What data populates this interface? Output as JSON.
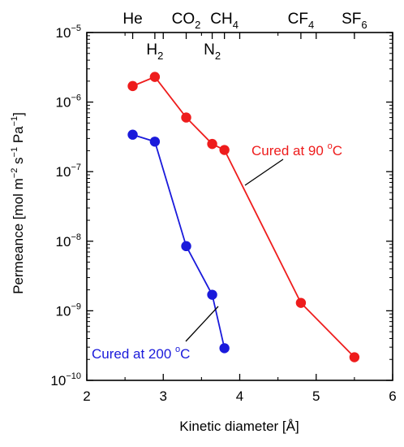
{
  "chart_data": {
    "type": "line",
    "xlabel": "Kinetic diameter [Å]",
    "ylabel": "Permeance [mol m",
    "ylabel_parts": [
      "Permeance [mol m",
      "−2",
      " s",
      "−1",
      " Pa",
      "−1",
      "]"
    ],
    "xlim": [
      2,
      6
    ],
    "ylim": [
      1e-10,
      1e-05
    ],
    "yscale": "log",
    "x_ticks": [
      "2",
      "3",
      "4",
      "5",
      "6"
    ],
    "y_ticks": [
      {
        "base": "10",
        "exp": "−10"
      },
      {
        "base": "10",
        "exp": "−9"
      },
      {
        "base": "10",
        "exp": "−8"
      },
      {
        "base": "10",
        "exp": "−7"
      },
      {
        "base": "10",
        "exp": "−6"
      },
      {
        "base": "10",
        "exp": "−5"
      }
    ],
    "top_labels": [
      {
        "name": "He",
        "sub": "",
        "x": 2.6
      },
      {
        "name": "CO",
        "sub": "2",
        "x": 3.3
      },
      {
        "name": "CH",
        "sub": "4",
        "x": 3.8
      },
      {
        "name": "CF",
        "sub": "4",
        "x": 4.8
      },
      {
        "name": "SF",
        "sub": "6",
        "x": 5.5
      },
      {
        "name": "H",
        "sub": "2",
        "x": 2.89
      },
      {
        "name": "N",
        "sub": "2",
        "x": 3.64
      }
    ],
    "series": [
      {
        "name": "Cured at 90 oC",
        "label_parts": [
          "Cured at 90 ",
          "o",
          "C"
        ],
        "color": "#ee1c1c",
        "x": [
          2.6,
          2.89,
          3.3,
          3.64,
          3.8,
          4.8,
          5.5
        ],
        "y": [
          1.7e-06,
          2.3e-06,
          6e-07,
          2.5e-07,
          2.05e-07,
          1.3e-09,
          2.15e-10
        ]
      },
      {
        "name": "Cured at 200 oC",
        "label_parts": [
          "Cured at 200 ",
          "o",
          "C"
        ],
        "color": "#1a1adb",
        "x": [
          2.6,
          2.89,
          3.3,
          3.64,
          3.8
        ],
        "y": [
          3.4e-07,
          2.7e-07,
          8.5e-09,
          1.7e-09,
          2.9e-10
        ]
      }
    ],
    "grid": false,
    "legend": "inline labels with leader lines"
  }
}
